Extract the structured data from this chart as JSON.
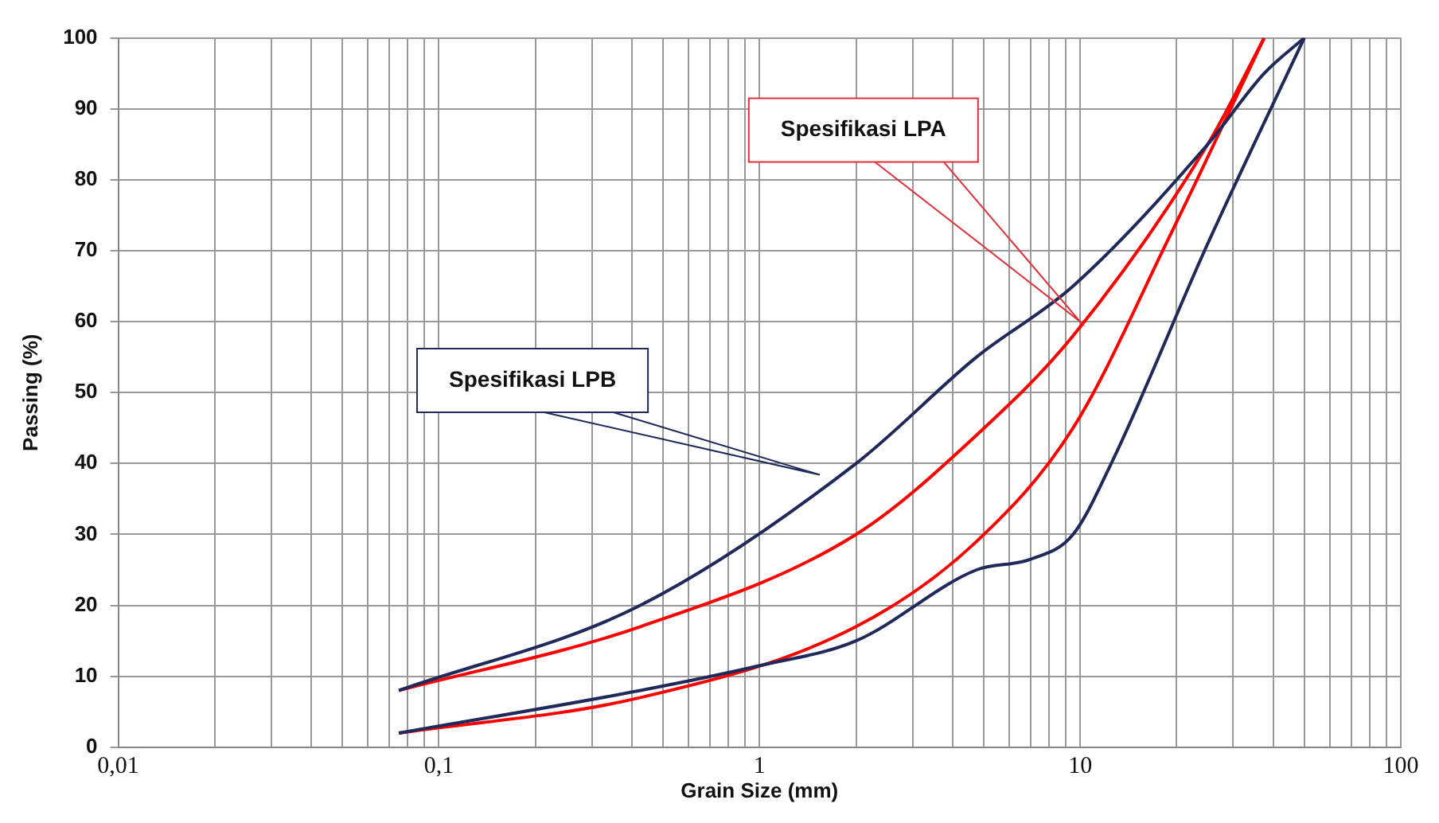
{
  "chart_data": {
    "type": "line",
    "xlabel": "Grain Size (mm)",
    "ylabel": "Passing (%)",
    "log": "x",
    "grid": true,
    "legend": false,
    "marker": "none",
    "line_style": "solid",
    "xlim": [
      0.01,
      100
    ],
    "xticks": [
      {
        "value": 0.01,
        "label": "0,01"
      },
      {
        "value": 0.02,
        "label": null
      },
      {
        "value": 0.03,
        "label": null
      },
      {
        "value": 0.04,
        "label": null
      },
      {
        "value": 0.05,
        "label": null
      },
      {
        "value": 0.06,
        "label": null
      },
      {
        "value": 0.07,
        "label": null
      },
      {
        "value": 0.08,
        "label": null
      },
      {
        "value": 0.09,
        "label": null
      },
      {
        "value": 0.1,
        "label": "0,1"
      },
      {
        "value": 0.2,
        "label": null
      },
      {
        "value": 0.3,
        "label": null
      },
      {
        "value": 0.4,
        "label": null
      },
      {
        "value": 0.5,
        "label": null
      },
      {
        "value": 0.6,
        "label": null
      },
      {
        "value": 0.7,
        "label": null
      },
      {
        "value": 0.8,
        "label": null
      },
      {
        "value": 0.9,
        "label": null
      },
      {
        "value": 1,
        "label": "1"
      },
      {
        "value": 2,
        "label": null
      },
      {
        "value": 3,
        "label": null
      },
      {
        "value": 4,
        "label": null
      },
      {
        "value": 5,
        "label": null
      },
      {
        "value": 6,
        "label": null
      },
      {
        "value": 7,
        "label": null
      },
      {
        "value": 8,
        "label": null
      },
      {
        "value": 9,
        "label": null
      },
      {
        "value": 10,
        "label": "10"
      },
      {
        "value": 20,
        "label": null
      },
      {
        "value": 30,
        "label": null
      },
      {
        "value": 40,
        "label": null
      },
      {
        "value": 50,
        "label": null
      },
      {
        "value": 60,
        "label": null
      },
      {
        "value": 70,
        "label": null
      },
      {
        "value": 80,
        "label": null
      },
      {
        "value": 90,
        "label": null
      },
      {
        "value": 100,
        "label": "100"
      }
    ],
    "ylim": [
      0,
      100
    ],
    "yticks": [
      0,
      10,
      20,
      30,
      40,
      50,
      60,
      70,
      80,
      90,
      100
    ],
    "series": [
      {
        "color": "#1f2a5a",
        "x": [
          0.075,
          0.425,
          2,
          4.75,
          9.5,
          25,
          37.5,
          50
        ],
        "values": [
          8,
          20,
          40,
          55,
          65,
          85,
          95,
          100
        ]
      },
      {
        "color": "#1f2a5a",
        "x": [
          0.075,
          0.425,
          1,
          2,
          4.75,
          7,
          9.5,
          12.5,
          25,
          50
        ],
        "values": [
          2,
          8,
          11.5,
          15,
          25,
          26.5,
          30,
          40,
          71,
          100
        ]
      },
      {
        "color": "#ff0000",
        "x": [
          0.075,
          0.425,
          2,
          4.75,
          9.5,
          25,
          37.5
        ],
        "values": [
          8,
          17,
          30,
          44,
          58,
          85,
          100
        ]
      },
      {
        "color": "#ff0000",
        "x": [
          0.075,
          0.425,
          2,
          4.75,
          9.5,
          19,
          37.5
        ],
        "values": [
          2,
          7,
          17,
          29,
          45,
          72,
          100
        ]
      }
    ],
    "annotations": [
      "Spesifikasi LPA",
      "Spesifikasi LPB"
    ]
  }
}
